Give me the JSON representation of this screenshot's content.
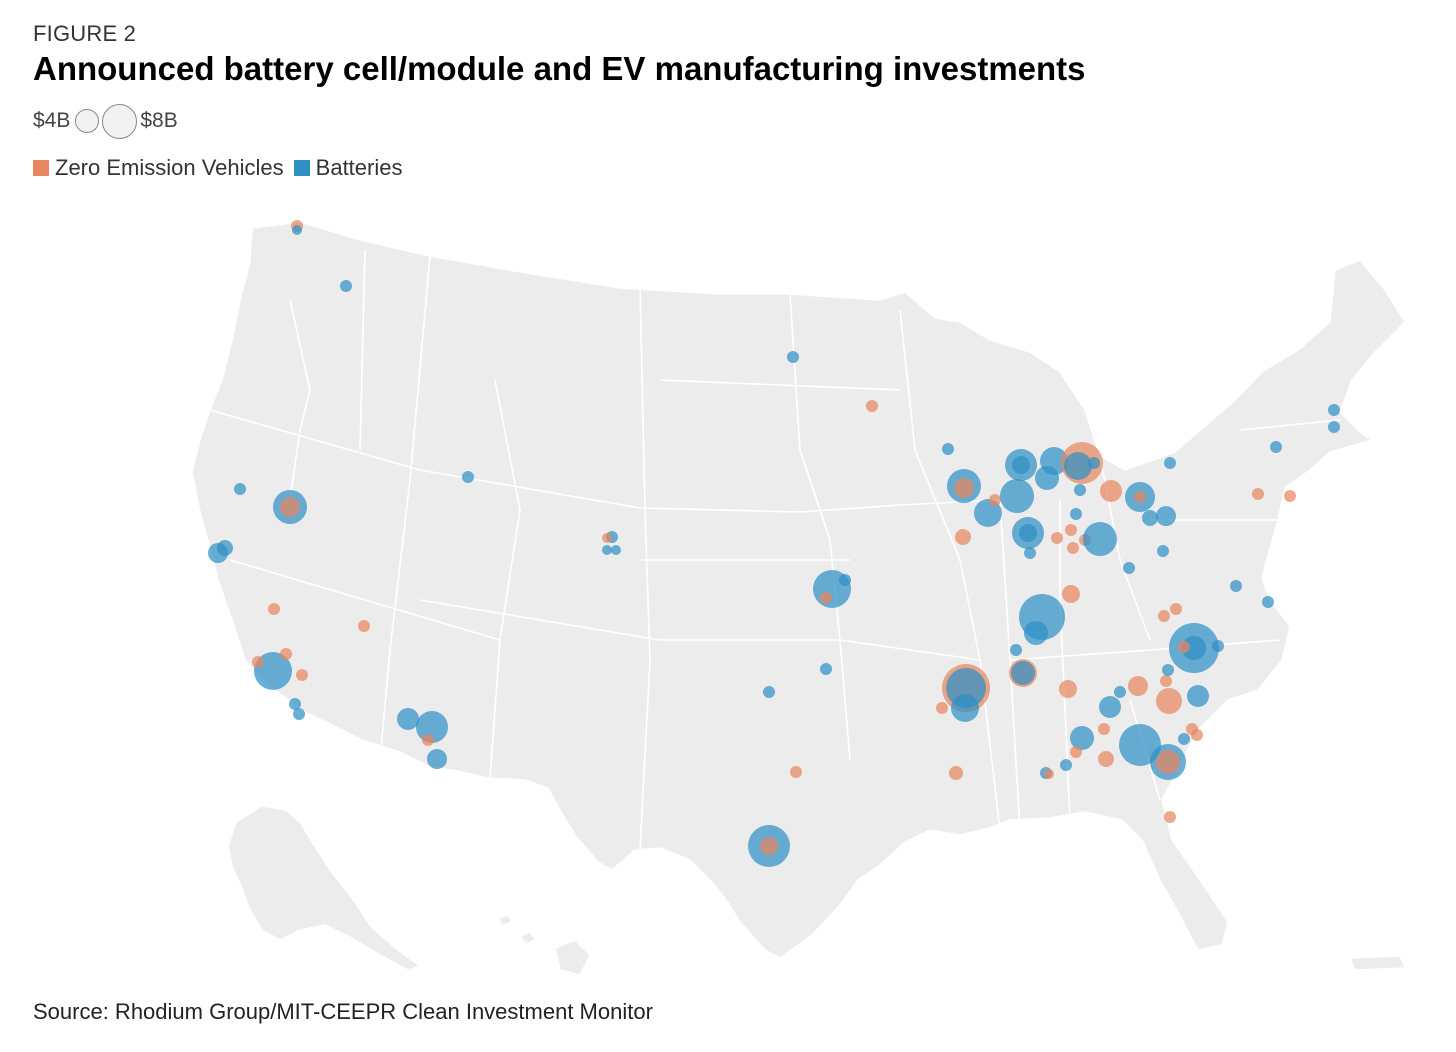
{
  "header": {
    "figure_label": "FIGURE 2",
    "title": "Announced battery cell/module and EV manufacturing investments"
  },
  "size_legend": {
    "small_label": "$4B",
    "large_label": "$8B"
  },
  "color_legend": {
    "zev_label": "Zero Emission Vehicles",
    "battery_label": "Batteries"
  },
  "colors": {
    "zev": "#e8865f",
    "battery": "#2f90c6",
    "land": "#ececec",
    "border": "#ffffff"
  },
  "map_data": {
    "type": "proportional-symbol-map",
    "region": "United States",
    "size_scale": {
      "reference_small": 4,
      "reference_large": 8,
      "unit": "billion USD"
    }
  },
  "footer": {
    "source": "Source: Rhodium Group/MIT-CEEPR Clean Investment Monitor"
  }
}
